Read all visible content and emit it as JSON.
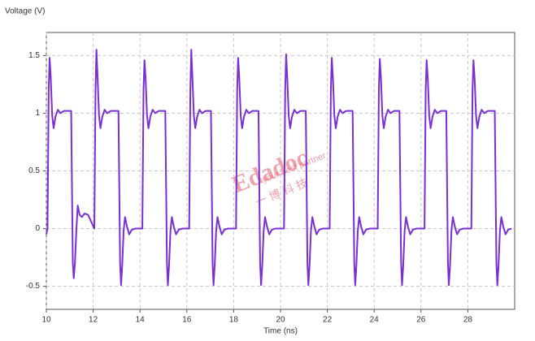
{
  "chart_data": {
    "type": "line",
    "y_label": "Voltage (V)",
    "x_label": "Time (ns)",
    "watermark": {
      "brand": "Edadoc",
      "slogan": "your best partner",
      "company": "一 博 科 技"
    },
    "xlim": [
      10,
      30
    ],
    "ylim": [
      -0.7,
      1.7
    ],
    "xticks": [
      10,
      12,
      14,
      16,
      18,
      20,
      22,
      24,
      26,
      28
    ],
    "yticks": [
      -0.5,
      0,
      0.5,
      1,
      1.5
    ],
    "grid": true,
    "series": [
      {
        "color": "#7a2fd6",
        "x": [
          10,
          10.05,
          10.1,
          10.14,
          10.19,
          10.25,
          10.31,
          10.39,
          10.49,
          10.6,
          10.75,
          11.06,
          11.13,
          11.17,
          11.22,
          11.28,
          11.34,
          11.42,
          11.52,
          11.63,
          11.78,
          12.05,
          12.1,
          12.14,
          12.19,
          12.25,
          12.31,
          12.39,
          12.49,
          12.6,
          12.75,
          13.08,
          13.15,
          13.19,
          13.24,
          13.3,
          13.36,
          13.44,
          13.54,
          13.65,
          13.8,
          14.1,
          14.15,
          14.19,
          14.24,
          14.3,
          14.36,
          14.44,
          14.54,
          14.65,
          14.8,
          15.08,
          15.15,
          15.19,
          15.24,
          15.3,
          15.36,
          15.44,
          15.54,
          15.65,
          15.8,
          16.1,
          16.15,
          16.19,
          16.24,
          16.3,
          16.36,
          16.44,
          16.54,
          16.65,
          16.8,
          17.03,
          17.1,
          17.14,
          17.19,
          17.25,
          17.31,
          17.39,
          17.49,
          17.6,
          17.75,
          18.1,
          18.15,
          18.19,
          18.24,
          18.3,
          18.36,
          18.44,
          18.54,
          18.65,
          18.8,
          19.06,
          19.13,
          19.17,
          19.22,
          19.28,
          19.34,
          19.42,
          19.52,
          19.63,
          19.78,
          20.15,
          20.2,
          20.24,
          20.29,
          20.35,
          20.41,
          20.49,
          20.59,
          20.7,
          20.85,
          21.08,
          21.15,
          21.19,
          21.24,
          21.3,
          21.36,
          21.44,
          21.54,
          21.65,
          21.8,
          22.1,
          22.15,
          22.19,
          22.24,
          22.3,
          22.36,
          22.44,
          22.54,
          22.65,
          22.8,
          23.08,
          23.15,
          23.19,
          23.24,
          23.3,
          23.36,
          23.44,
          23.54,
          23.65,
          23.8,
          24.15,
          24.2,
          24.24,
          24.29,
          24.35,
          24.41,
          24.49,
          24.59,
          24.7,
          24.85,
          25.08,
          25.15,
          25.19,
          25.24,
          25.3,
          25.36,
          25.44,
          25.54,
          25.65,
          25.8,
          26.15,
          26.2,
          26.24,
          26.29,
          26.35,
          26.41,
          26.49,
          26.59,
          26.7,
          26.85,
          27.08,
          27.15,
          27.19,
          27.24,
          27.3,
          27.36,
          27.44,
          27.54,
          27.65,
          27.8,
          28.15,
          28.2,
          28.24,
          28.29,
          28.35,
          28.41,
          28.49,
          28.59,
          28.7,
          28.85,
          29.15,
          29.22,
          29.26,
          29.31,
          29.37,
          29.43,
          29.51,
          29.61,
          29.72,
          29.87
        ],
        "values": [
          -0.05,
          0,
          1.2,
          1.48,
          1.3,
          0.98,
          0.87,
          0.97,
          1.03,
          1,
          1.02,
          1.02,
          -0.3,
          -0.43,
          -0.3,
          -0.02,
          0.2,
          0.12,
          0.1,
          0.13,
          0.12,
          0,
          1.2,
          1.55,
          1.3,
          0.98,
          0.87,
          0.97,
          1.03,
          1,
          1.02,
          1.02,
          -0.3,
          -0.49,
          -0.32,
          -0.02,
          0.1,
          0.02,
          -0.05,
          -0.01,
          0,
          0,
          1.2,
          1.46,
          1.3,
          0.98,
          0.87,
          0.97,
          1.03,
          1,
          1.02,
          1.02,
          -0.3,
          -0.49,
          -0.32,
          -0.02,
          0.1,
          0.02,
          -0.05,
          -0.01,
          0,
          0,
          1.2,
          1.55,
          1.3,
          0.98,
          0.87,
          0.97,
          1.03,
          1,
          1.02,
          1.02,
          -0.3,
          -0.49,
          -0.32,
          -0.02,
          0.1,
          0.02,
          -0.05,
          -0.01,
          0,
          0,
          1.2,
          1.48,
          1.3,
          0.98,
          0.87,
          0.97,
          1.03,
          1,
          1.02,
          1.02,
          -0.3,
          -0.49,
          -0.32,
          -0.02,
          0.1,
          0.02,
          -0.05,
          -0.01,
          0,
          0,
          1.2,
          1.51,
          1.3,
          0.98,
          0.87,
          0.97,
          1.03,
          1,
          1.02,
          1.02,
          -0.3,
          -0.49,
          -0.32,
          -0.02,
          0.1,
          0.02,
          -0.05,
          -0.01,
          0,
          0,
          1.2,
          1.48,
          1.3,
          0.98,
          0.87,
          0.97,
          1.03,
          1,
          1.02,
          1.02,
          -0.3,
          -0.49,
          -0.32,
          -0.02,
          0.1,
          0.02,
          -0.05,
          -0.01,
          0,
          0,
          1.2,
          1.47,
          1.3,
          0.98,
          0.87,
          0.97,
          1.03,
          1,
          1.02,
          1.02,
          -0.3,
          -0.49,
          -0.32,
          -0.02,
          0.1,
          0.02,
          -0.05,
          -0.01,
          0,
          0,
          1.2,
          1.46,
          1.3,
          0.98,
          0.87,
          0.97,
          1.03,
          1,
          1.02,
          1.02,
          -0.3,
          -0.49,
          -0.32,
          -0.02,
          0.1,
          0.02,
          -0.05,
          -0.01,
          0,
          0,
          1.2,
          1.46,
          1.3,
          0.98,
          0.87,
          0.97,
          1.03,
          1,
          1.02,
          1.02,
          -0.3,
          -0.49,
          -0.32,
          -0.02,
          0.1,
          0.02,
          -0.05,
          -0.01,
          0
        ]
      }
    ]
  }
}
